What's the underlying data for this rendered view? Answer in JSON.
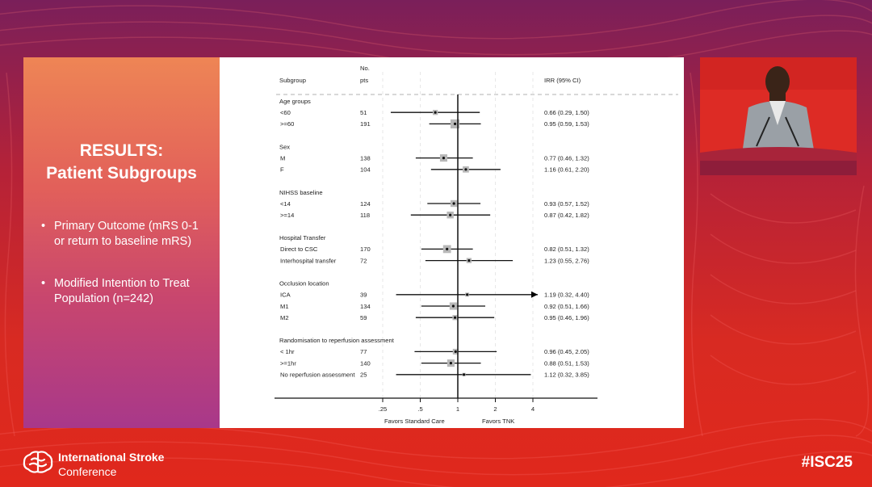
{
  "slide": {
    "title_line1": "RESULTS:",
    "title_line2": "Patient Subgroups",
    "bullets": [
      "Primary Outcome (mRS 0-1 or return to baseline mRS)",
      "Modified Intention to Treat Population (n=242)"
    ],
    "bullet_symbol": "•"
  },
  "footer": {
    "conference_line1": "International Stroke",
    "conference_line2": "Conference",
    "hashtag": "#ISC25"
  },
  "colors": {
    "accent_red": "#d82a22",
    "panel_orange": "#ee8555",
    "panel_purple": "#a8388a",
    "marker_gray": "#b8b8b8",
    "arrow_color": "#000000"
  },
  "chart_data": {
    "type": "forest",
    "header": {
      "subgroup": "Subgroup",
      "no_line1": "No.",
      "no_line2": "pts",
      "irr": "IRR (95% CI)"
    },
    "x_scale": "log",
    "x_ticks": [
      {
        "value": 0.25,
        "label": ".25"
      },
      {
        "value": 0.5,
        "label": ".5"
      },
      {
        "value": 1,
        "label": "1"
      },
      {
        "value": 2,
        "label": "2"
      },
      {
        "value": 4,
        "label": "4"
      }
    ],
    "xlim": [
      0.25,
      4
    ],
    "reference_line": 1,
    "favors_left": "Favors Standard Care",
    "favors_right": "Favors TNK",
    "groups": [
      {
        "name": "Age groups",
        "rows": [
          {
            "label": "<60",
            "n": "51",
            "irr": 0.66,
            "lo": 0.29,
            "hi": 1.5,
            "text": "0.66 (0.29, 1.50)",
            "weight": 0.9
          },
          {
            "label": ">=60",
            "n": "191",
            "irr": 0.95,
            "lo": 0.59,
            "hi": 1.53,
            "text": "0.95 (0.59, 1.53)",
            "weight": 1.6
          }
        ]
      },
      {
        "name": "Sex",
        "rows": [
          {
            "label": "M",
            "n": "138",
            "irr": 0.77,
            "lo": 0.46,
            "hi": 1.32,
            "text": "0.77 (0.46, 1.32)",
            "weight": 1.3
          },
          {
            "label": "F",
            "n": "104",
            "irr": 1.16,
            "lo": 0.61,
            "hi": 2.2,
            "text": "1.16 (0.61, 2.20)",
            "weight": 1.1
          }
        ]
      },
      {
        "name": "NIHSS baseline",
        "rows": [
          {
            "label": "<14",
            "n": "124",
            "irr": 0.93,
            "lo": 0.57,
            "hi": 1.52,
            "text": "0.93 (0.57, 1.52)",
            "weight": 1.2
          },
          {
            "label": ">=14",
            "n": "118",
            "irr": 0.87,
            "lo": 0.42,
            "hi": 1.82,
            "text": "0.87 (0.42, 1.82)",
            "weight": 1.2
          }
        ]
      },
      {
        "name": "Hospital Transfer",
        "rows": [
          {
            "label": "Direct to CSC",
            "n": "170",
            "irr": 0.82,
            "lo": 0.51,
            "hi": 1.32,
            "text": "0.82 (0.51, 1.32)",
            "weight": 1.4
          },
          {
            "label": "Interhospital transfer",
            "n": "72",
            "irr": 1.23,
            "lo": 0.55,
            "hi": 2.76,
            "text": "1.23 (0.55, 2.76)",
            "weight": 0.9
          }
        ]
      },
      {
        "name": "Occlusion location",
        "rows": [
          {
            "label": "ICA",
            "n": "39",
            "irr": 1.19,
            "lo": 0.32,
            "hi": 4.4,
            "text": "1.19 (0.32, 4.40)",
            "weight": 0.7,
            "arrow": true
          },
          {
            "label": "M1",
            "n": "134",
            "irr": 0.92,
            "lo": 0.51,
            "hi": 1.66,
            "text": "0.92 (0.51, 1.66)",
            "weight": 1.3
          },
          {
            "label": "M2",
            "n": "59",
            "irr": 0.95,
            "lo": 0.46,
            "hi": 1.96,
            "text": "0.95 (0.46, 1.96)",
            "weight": 0.9
          }
        ]
      },
      {
        "name": "Randomisation to reperfusion assessment",
        "rows": [
          {
            "label": "< 1hr",
            "n": "77",
            "irr": 0.96,
            "lo": 0.45,
            "hi": 2.05,
            "text": "0.96 (0.45, 2.05)",
            "weight": 1.0
          },
          {
            "label": ">=1hr",
            "n": "140",
            "irr": 0.88,
            "lo": 0.51,
            "hi": 1.53,
            "text": "0.88 (0.51, 1.53)",
            "weight": 1.3
          },
          {
            "label": "No reperfusion assessment",
            "n": "25",
            "irr": 1.12,
            "lo": 0.32,
            "hi": 3.85,
            "text": "1.12 (0.32, 3.85)",
            "weight": 0.6
          }
        ]
      }
    ]
  }
}
